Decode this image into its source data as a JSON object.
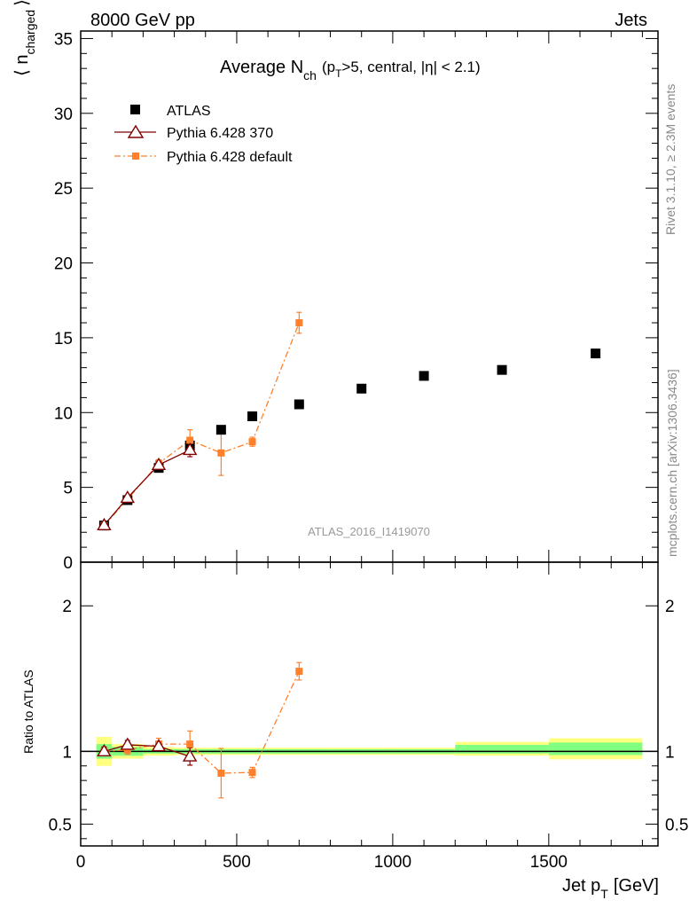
{
  "header": {
    "left": "8000 GeV pp",
    "right": "Jets"
  },
  "side_text": {
    "rivet": "Rivet 3.1.10, ≥ 2.3M events",
    "mcplots": "mcplots.cern.ch [arXiv:1306.3436]"
  },
  "watermark": "ATLAS_2016_I1419070",
  "colors": {
    "atlas": "#000000",
    "pythia370": "#800000",
    "pythia_default": "#ff7f2a",
    "band_inner": "#80ff80",
    "band_outer": "#ffff80"
  },
  "chart_data": [
    {
      "type": "scatter",
      "title": "Average N_ch (p_T>5, central, |η| < 2.1)",
      "title_parts": {
        "main": "Average N",
        "sub": "ch",
        "paren_open": "(p",
        "pt_sub": "T",
        "rest": ">5, central, |η| < 2.1)"
      },
      "ylabel": "⟨ n_charged ⟩",
      "ylabel_parts": {
        "open": "⟨ n",
        "sub": "charged",
        "close": "⟩"
      },
      "xlim": [
        0,
        1850
      ],
      "ylim": [
        0,
        35.5
      ],
      "yticks": [
        0,
        5,
        10,
        15,
        20,
        25,
        30,
        35
      ],
      "legend_position": "top-left",
      "series": [
        {
          "name": "ATLAS",
          "marker": "filled-square",
          "x": [
            75,
            150,
            250,
            350,
            450,
            550,
            700,
            900,
            1100,
            1350,
            1650
          ],
          "y": [
            2.45,
            4.15,
            6.3,
            7.8,
            8.85,
            9.75,
            10.55,
            11.6,
            12.45,
            12.85,
            13.95
          ]
        },
        {
          "name": "Pythia 6.428 370",
          "marker": "open-triangle",
          "line": "solid",
          "x": [
            75,
            150,
            250,
            350
          ],
          "y": [
            2.47,
            4.3,
            6.5,
            7.5
          ],
          "yerr": [
            0.1,
            0.15,
            0.2,
            0.45
          ]
        },
        {
          "name": "Pythia 6.428 default",
          "marker": "filled-square-small",
          "line": "dash-dot",
          "x": [
            75,
            150,
            250,
            350,
            450,
            550,
            700
          ],
          "y": [
            2.45,
            4.2,
            6.6,
            8.15,
            7.3,
            8.05,
            16.0
          ],
          "yerr": [
            0.1,
            0.15,
            0.25,
            0.7,
            1.5,
            0.3,
            0.7
          ]
        }
      ]
    },
    {
      "type": "scatter",
      "ylabel": "Ratio to ATLAS",
      "xlabel": "Jet p_T [GeV]",
      "xlabel_parts": {
        "main": "Jet p",
        "sub": "T",
        "unit": "[GeV]"
      },
      "xlim": [
        0,
        1850
      ],
      "ylim": [
        0.35,
        2.3
      ],
      "yticks": [
        0.5,
        1,
        2
      ],
      "ytick_labels": [
        "0.5",
        "1",
        "2"
      ],
      "xticks": [
        0,
        500,
        1000,
        1500
      ],
      "xtick_labels": [
        "0",
        "500",
        "1000",
        "1500"
      ],
      "bands": [
        {
          "x": [
            50,
            100
          ],
          "inner": [
            0.95,
            1.05
          ],
          "outer": [
            0.9,
            1.1
          ]
        },
        {
          "x": [
            100,
            200
          ],
          "inner": [
            0.97,
            1.03
          ],
          "outer": [
            0.95,
            1.05
          ]
        },
        {
          "x": [
            200,
            300
          ],
          "inner": [
            0.985,
            1.015
          ],
          "outer": [
            0.97,
            1.03
          ]
        },
        {
          "x": [
            300,
            400
          ],
          "inner": [
            0.985,
            1.015
          ],
          "outer": [
            0.975,
            1.025
          ]
        },
        {
          "x": [
            400,
            500
          ],
          "inner": [
            0.985,
            1.015
          ],
          "outer": [
            0.975,
            1.025
          ]
        },
        {
          "x": [
            500,
            600
          ],
          "inner": [
            0.985,
            1.015
          ],
          "outer": [
            0.975,
            1.025
          ]
        },
        {
          "x": [
            600,
            800
          ],
          "inner": [
            0.985,
            1.015
          ],
          "outer": [
            0.975,
            1.025
          ]
        },
        {
          "x": [
            800,
            1000
          ],
          "inner": [
            0.985,
            1.015
          ],
          "outer": [
            0.975,
            1.025
          ]
        },
        {
          "x": [
            1000,
            1200
          ],
          "inner": [
            0.985,
            1.015
          ],
          "outer": [
            0.975,
            1.025
          ]
        },
        {
          "x": [
            1200,
            1500
          ],
          "inner": [
            0.985,
            1.045
          ],
          "outer": [
            0.97,
            1.065
          ]
        },
        {
          "x": [
            1500,
            1800
          ],
          "inner": [
            0.975,
            1.06
          ],
          "outer": [
            0.945,
            1.09
          ]
        }
      ],
      "series": [
        {
          "name": "Pythia 6.428 370",
          "x": [
            75,
            150,
            250,
            350
          ],
          "y": [
            1.0,
            1.045,
            1.035,
            0.965
          ],
          "yerr": [
            0.03,
            0.03,
            0.03,
            0.06
          ]
        },
        {
          "name": "Pythia 6.428 default",
          "x": [
            75,
            150,
            250,
            350,
            450,
            550,
            700
          ],
          "y": [
            1.0,
            1.01,
            1.05,
            1.05,
            0.85,
            0.855,
            1.55
          ],
          "yerr": [
            0.03,
            0.03,
            0.04,
            0.09,
            0.17,
            0.035,
            0.06
          ]
        }
      ]
    }
  ]
}
